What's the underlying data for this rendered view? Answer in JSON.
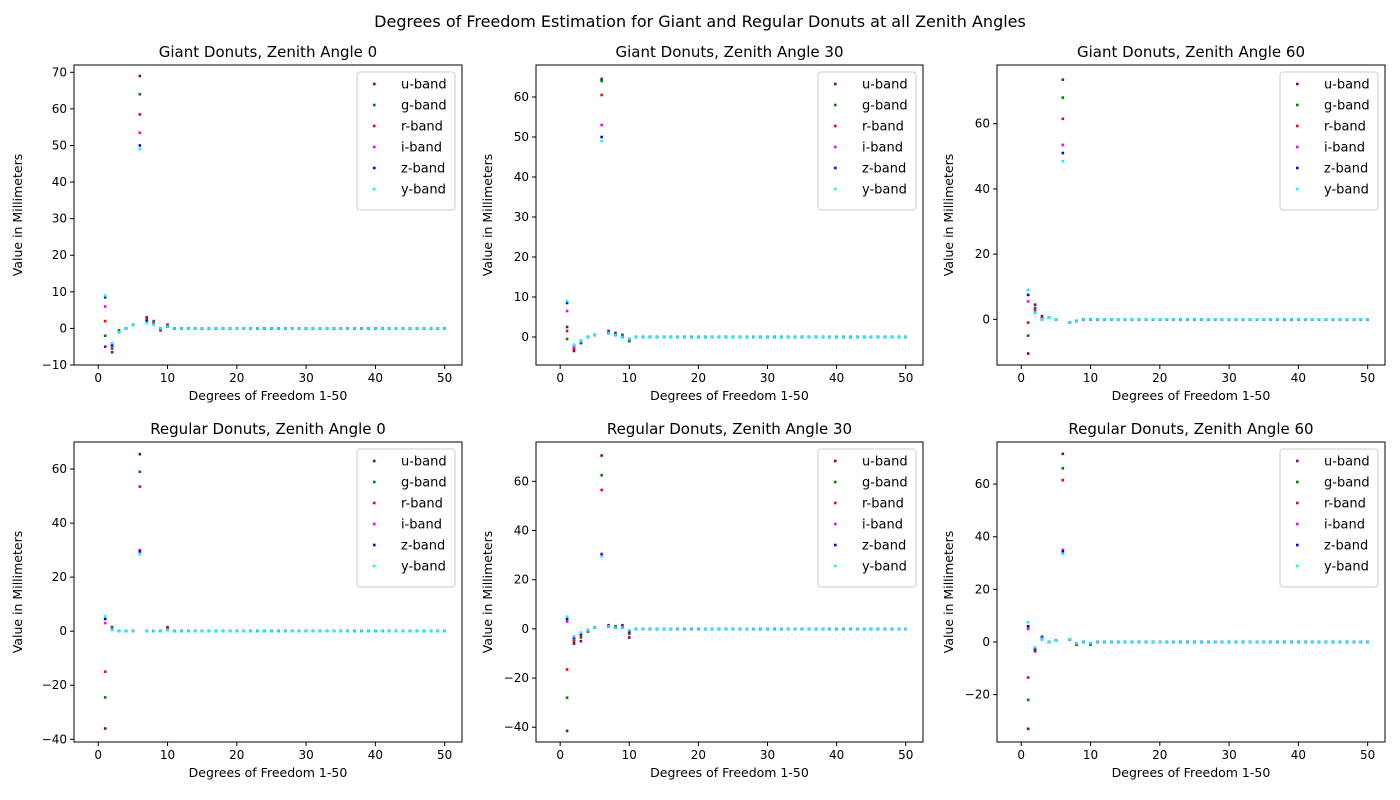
{
  "figure": {
    "suptitle": "Degrees of Freedom Estimation for Giant and Regular Donuts at all Zenith Angles"
  },
  "chart_data": [
    {
      "type": "scatter",
      "title": "Giant Donuts, Zenith Angle 0",
      "xlabel": "Degrees of Freedom 1-50",
      "ylabel": "Value in Millimeters",
      "xlim": [
        -3.5,
        52.5
      ],
      "ylim": [
        -10,
        72
      ],
      "xticks": [
        0,
        10,
        20,
        30,
        40,
        50
      ],
      "yticks": [
        -10,
        0,
        10,
        20,
        30,
        40,
        50,
        60,
        70
      ],
      "legend": "top-right",
      "series": [
        {
          "name": "u-band",
          "color": "#800080",
          "head": [
            -5,
            -6.5,
            -1,
            0,
            1,
            69,
            3,
            1.5,
            -0.5,
            1
          ]
        },
        {
          "name": "g-band",
          "color": "#008000",
          "head": [
            -2,
            -5.5,
            -0.5,
            0,
            1,
            64,
            2.5,
            2,
            -0.5,
            0.5
          ]
        },
        {
          "name": "r-band",
          "color": "#ff0000",
          "head": [
            2,
            -5,
            -1,
            0,
            1,
            58.5,
            2.5,
            1.5,
            -0.5,
            0.5
          ]
        },
        {
          "name": "i-band",
          "color": "#ff00ff",
          "head": [
            6,
            -5,
            -1,
            0,
            1,
            53.5,
            2,
            1.5,
            0,
            0.5
          ]
        },
        {
          "name": "z-band",
          "color": "#0000ff",
          "head": [
            8.5,
            -4.5,
            -1,
            0,
            1,
            50,
            2,
            1,
            0,
            0.5
          ]
        },
        {
          "name": "y-band",
          "color": "#00ffff",
          "head": [
            9,
            -4,
            -1,
            0,
            1,
            49,
            1.5,
            1,
            0,
            0.5
          ]
        }
      ]
    },
    {
      "type": "scatter",
      "title": "Giant Donuts, Zenith Angle 30",
      "xlabel": "Degrees of Freedom 1-50",
      "ylabel": "Value in Millimeters",
      "xlim": [
        -3.5,
        52.5
      ],
      "ylim": [
        -7,
        68
      ],
      "xticks": [
        0,
        10,
        20,
        30,
        40,
        50
      ],
      "yticks": [
        0,
        10,
        20,
        30,
        40,
        50,
        60
      ],
      "legend": "top-right",
      "series": [
        {
          "name": "u-band",
          "color": "#800080",
          "head": [
            2.5,
            -3.5,
            -1.5,
            0,
            0.5,
            64.5,
            1.5,
            1,
            0.5,
            -1
          ]
        },
        {
          "name": "g-band",
          "color": "#008000",
          "head": [
            -0.5,
            -3,
            -1.5,
            0,
            0.5,
            64,
            1,
            0.5,
            0.5,
            -1
          ]
        },
        {
          "name": "r-band",
          "color": "#ff0000",
          "head": [
            1.5,
            -3,
            -1,
            0,
            0.5,
            60.5,
            1,
            0.5,
            0,
            -0.5
          ]
        },
        {
          "name": "i-band",
          "color": "#ff00ff",
          "head": [
            6.5,
            -2.5,
            -1,
            0,
            0.5,
            53,
            1,
            0.5,
            0,
            -0.5
          ]
        },
        {
          "name": "z-band",
          "color": "#0000ff",
          "head": [
            8.5,
            -2,
            -1,
            0,
            0.5,
            50,
            1,
            0.5,
            0,
            -0.5
          ]
        },
        {
          "name": "y-band",
          "color": "#00ffff",
          "head": [
            9,
            -2,
            -1,
            0,
            0.5,
            49,
            1,
            0.5,
            0,
            -0.5
          ]
        }
      ]
    },
    {
      "type": "scatter",
      "title": "Giant Donuts, Zenith Angle 60",
      "xlabel": "Degrees of Freedom 1-50",
      "ylabel": "Value in Millimeters",
      "xlim": [
        -3.5,
        52.5
      ],
      "ylim": [
        -14,
        78
      ],
      "xticks": [
        0,
        10,
        20,
        30,
        40,
        50
      ],
      "yticks": [
        0,
        20,
        40,
        60
      ],
      "legend": "top-right",
      "series": [
        {
          "name": "u-band",
          "color": "#800080",
          "head": [
            -10.5,
            4.5,
            1,
            0.5,
            0,
            73.5,
            -1,
            -0.5,
            0,
            0
          ]
        },
        {
          "name": "g-band",
          "color": "#008000",
          "head": [
            -5,
            3.5,
            0.5,
            0.5,
            0,
            68,
            -1,
            -0.5,
            0,
            0
          ]
        },
        {
          "name": "r-band",
          "color": "#ff0000",
          "head": [
            -1,
            3,
            0.5,
            0.5,
            0,
            61.5,
            -1,
            -0.5,
            0,
            0
          ]
        },
        {
          "name": "i-band",
          "color": "#ff00ff",
          "head": [
            5.5,
            2.5,
            0,
            0.5,
            0,
            53.5,
            -1,
            -0.5,
            0,
            0
          ]
        },
        {
          "name": "z-band",
          "color": "#0000ff",
          "head": [
            7.5,
            2,
            0,
            0.5,
            0,
            51,
            -1,
            -0.5,
            0,
            0
          ]
        },
        {
          "name": "y-band",
          "color": "#00ffff",
          "head": [
            9,
            2,
            0,
            0.5,
            0,
            48.5,
            -1,
            -0.5,
            0,
            0
          ]
        }
      ]
    },
    {
      "type": "scatter",
      "title": "Regular Donuts, Zenith Angle 0",
      "xlabel": "Degrees of Freedom 1-50",
      "ylabel": "Value in Millimeters",
      "xlim": [
        -3.5,
        52.5
      ],
      "ylim": [
        -41,
        70
      ],
      "xticks": [
        0,
        10,
        20,
        30,
        40,
        50
      ],
      "yticks": [
        -40,
        -20,
        0,
        20,
        40,
        60
      ],
      "legend": "top-right",
      "series": [
        {
          "name": "u-band",
          "color": "#800080",
          "head": [
            -36,
            1.5,
            0,
            0,
            0,
            65.5,
            0,
            0,
            0,
            1.5
          ]
        },
        {
          "name": "g-band",
          "color": "#008000",
          "head": [
            -24.5,
            1.5,
            0,
            0,
            0,
            59,
            0,
            0,
            0,
            1
          ]
        },
        {
          "name": "r-band",
          "color": "#ff0000",
          "head": [
            -15,
            1,
            0,
            0,
            0,
            53.5,
            0,
            0,
            0,
            1
          ]
        },
        {
          "name": "i-band",
          "color": "#ff00ff",
          "head": [
            3,
            1,
            0,
            0,
            0,
            30,
            0,
            0,
            0,
            0.5
          ]
        },
        {
          "name": "z-band",
          "color": "#0000ff",
          "head": [
            4.5,
            0.5,
            0,
            0,
            0,
            29.5,
            0,
            0,
            0,
            0.5
          ]
        },
        {
          "name": "y-band",
          "color": "#00ffff",
          "head": [
            5.5,
            0.5,
            0,
            0,
            0,
            28.5,
            0,
            0,
            0,
            0.5
          ]
        }
      ]
    },
    {
      "type": "scatter",
      "title": "Regular Donuts, Zenith Angle 30",
      "xlabel": "Degrees of Freedom 1-50",
      "ylabel": "Value in Millimeters",
      "xlim": [
        -3.5,
        52.5
      ],
      "ylim": [
        -46,
        76
      ],
      "xticks": [
        0,
        10,
        20,
        30,
        40,
        50
      ],
      "yticks": [
        -40,
        -20,
        0,
        20,
        40,
        60
      ],
      "legend": "top-right",
      "series": [
        {
          "name": "u-band",
          "color": "#800080",
          "head": [
            -41.5,
            -6,
            -5,
            -1,
            0.5,
            70.5,
            1.5,
            1,
            1.5,
            -3.5
          ]
        },
        {
          "name": "g-band",
          "color": "#008000",
          "head": [
            -28,
            -5,
            -3.5,
            -1,
            0.5,
            62.5,
            1,
            1,
            1,
            -2
          ]
        },
        {
          "name": "r-band",
          "color": "#ff0000",
          "head": [
            -16.5,
            -4.5,
            -3,
            -1,
            0.5,
            56.5,
            1,
            0.5,
            1,
            -1.5
          ]
        },
        {
          "name": "i-band",
          "color": "#ff00ff",
          "head": [
            3,
            -4,
            -2,
            -0.5,
            0.5,
            30.5,
            1,
            0.5,
            0.5,
            -1
          ]
        },
        {
          "name": "z-band",
          "color": "#0000ff",
          "head": [
            4,
            -3.5,
            -2,
            -0.5,
            0.5,
            30,
            1,
            0.5,
            0.5,
            -1
          ]
        },
        {
          "name": "y-band",
          "color": "#00ffff",
          "head": [
            5,
            -3,
            -1.5,
            -0.5,
            0.5,
            29.5,
            1,
            0.5,
            0.5,
            -0.5
          ]
        }
      ]
    },
    {
      "type": "scatter",
      "title": "Regular Donuts, Zenith Angle 60",
      "xlabel": "Degrees of Freedom 1-50",
      "ylabel": "Value in Millimeters",
      "xlim": [
        -3.5,
        52.5
      ],
      "ylim": [
        -38,
        76
      ],
      "xticks": [
        0,
        10,
        20,
        30,
        40,
        50
      ],
      "yticks": [
        -20,
        0,
        20,
        40,
        60
      ],
      "legend": "top-right",
      "series": [
        {
          "name": "u-band",
          "color": "#800080",
          "head": [
            -33,
            -3.5,
            2,
            0,
            0.5,
            71.5,
            1,
            -1,
            0,
            -1
          ]
        },
        {
          "name": "g-band",
          "color": "#008000",
          "head": [
            -22,
            -3,
            2,
            0,
            0.5,
            66,
            1,
            -1,
            0,
            -1
          ]
        },
        {
          "name": "r-band",
          "color": "#ff0000",
          "head": [
            -13.5,
            -3,
            1.5,
            0,
            0.5,
            61.5,
            1,
            -1,
            0,
            -0.5
          ]
        },
        {
          "name": "i-band",
          "color": "#ff00ff",
          "head": [
            5,
            -2.5,
            1.5,
            0,
            0.5,
            35,
            1,
            -0.5,
            0,
            -0.5
          ]
        },
        {
          "name": "z-band",
          "color": "#0000ff",
          "head": [
            6,
            -2.5,
            1,
            0,
            0.5,
            34.5,
            1,
            -0.5,
            0,
            -0.5
          ]
        },
        {
          "name": "y-band",
          "color": "#00ffff",
          "head": [
            7.5,
            -2,
            1,
            0,
            0.5,
            33.5,
            1,
            -0.5,
            0,
            -0.5
          ]
        }
      ]
    }
  ]
}
